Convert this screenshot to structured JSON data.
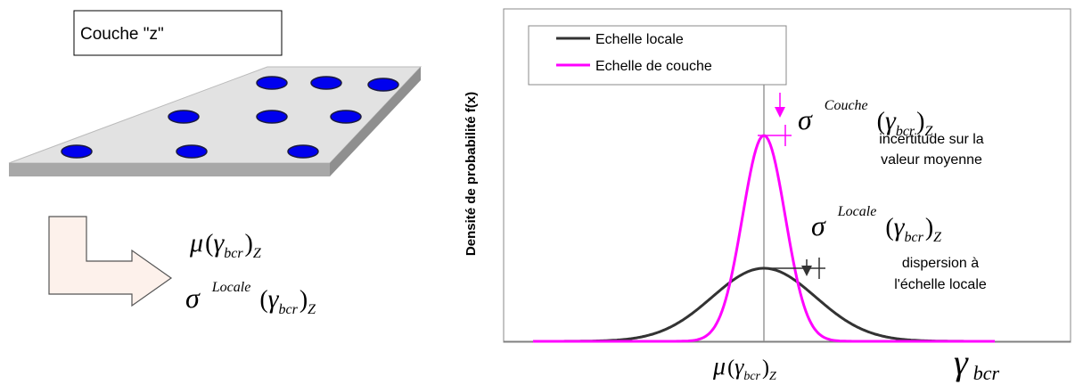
{
  "left": {
    "layer_label": "Couche \"z\"",
    "mean_formula": {
      "symbol": "μ",
      "open": "(",
      "variable": "γ",
      "subscript": "bcr",
      "close": ")",
      "outer_subscript": "Z"
    },
    "local_formula": {
      "symbol": "σ",
      "superscript": "Locale",
      "open": "(",
      "variable": "γ",
      "subscript": "bcr",
      "close": ")",
      "outer_subscript": "Z"
    }
  },
  "chart": {
    "y_axis_label": "Densité de probabilité f(x)",
    "legend": [
      "Echelle locale",
      "Echelle de couche"
    ],
    "layer_formula": {
      "symbol": "σ",
      "superscript": "Couche",
      "open": "(",
      "variable": "γ",
      "subscript": "bcr",
      "close": ")",
      "outer_subscript": "Z"
    },
    "layer_note": [
      "incertitude sur la",
      "valeur moyenne"
    ],
    "local_formula": {
      "symbol": "σ",
      "superscript": "Locale",
      "open": "(",
      "variable": "γ",
      "subscript": "bcr",
      "close": ")",
      "outer_subscript": "Z"
    },
    "local_note": [
      "dispersion à",
      "l'échelle locale"
    ],
    "x_mean_label": {
      "symbol": "μ",
      "open": "(",
      "variable": "γ",
      "subscript": "bcr",
      "close": ")",
      "outer_subscript": "Z"
    },
    "x_axis_label": {
      "variable": "γ",
      "subscript": "bcr"
    }
  }
}
